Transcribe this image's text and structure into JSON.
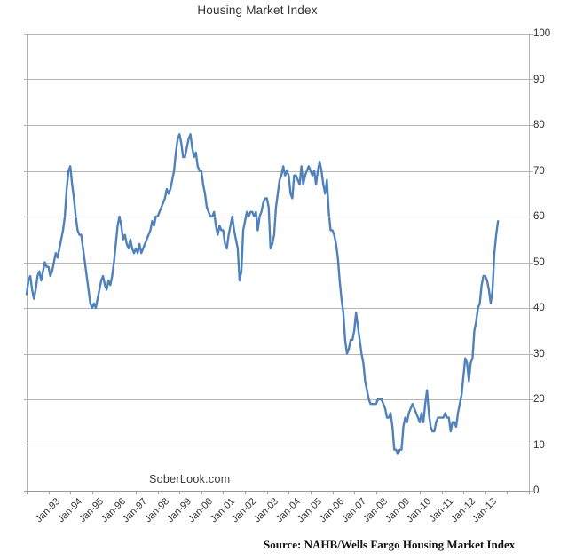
{
  "page": {
    "title": "Housing Market Index",
    "watermark": "SoberLook.com",
    "source_note": "Source: NAHB/Wells Fargo Housing Market Index"
  },
  "colors": {
    "line": "#4f81bd",
    "grid": "#b5b5b5",
    "axis": "#9a9a9a",
    "tick_text": "#303030"
  },
  "chart_data": {
    "type": "line",
    "title": "Housing Market Index",
    "grid": true,
    "legend": "none",
    "y_axis": {
      "side": "right",
      "range": [
        0,
        100
      ],
      "ticks": [
        0,
        10,
        20,
        30,
        40,
        50,
        60,
        70,
        80,
        90,
        100
      ]
    },
    "x_axis": {
      "frequency": "monthly",
      "start_month": "Jan-1992",
      "end_month": "Aug-2013",
      "tick_interval_months": 12,
      "tick_labels": [
        "Jan-93",
        "Jan-94",
        "Jan-95",
        "Jan-96",
        "Jan-97",
        "Jan-98",
        "Jan-99",
        "Jan-00",
        "Jan-01",
        "Jan-02",
        "Jan-03",
        "Jan-04",
        "Jan-05",
        "Jan-06",
        "Jan-07",
        "Jan-08",
        "Jan-09",
        "Jan-10",
        "Jan-11",
        "Jan-12",
        "Jan-13"
      ]
    },
    "series": [
      {
        "name": "NAHB/Wells Fargo Housing Market Index",
        "color": "#4f81bd",
        "values": [
          43,
          46,
          47,
          44,
          42,
          44,
          47,
          48,
          46,
          48,
          50,
          49,
          49,
          47,
          48,
          50,
          52,
          51,
          53,
          55,
          57,
          60,
          66,
          70,
          71,
          67,
          64,
          60,
          57,
          56,
          56,
          53,
          50,
          47,
          44,
          41,
          40,
          41,
          40,
          42,
          44,
          46,
          47,
          45,
          44,
          46,
          45,
          47,
          50,
          54,
          58,
          60,
          58,
          55,
          56,
          54,
          53,
          55,
          53,
          52,
          53,
          52,
          54,
          52,
          53,
          54,
          55,
          56,
          57,
          59,
          58,
          60,
          60,
          61,
          62,
          63,
          64,
          66,
          65,
          66,
          68,
          70,
          74,
          77,
          78,
          76,
          73,
          73,
          75,
          77,
          78,
          75,
          73,
          74,
          71,
          70,
          70,
          67,
          65,
          62,
          61,
          60,
          60,
          61,
          58,
          56,
          58,
          57,
          57,
          54,
          53,
          56,
          58,
          60,
          57,
          55,
          53,
          46,
          48,
          57,
          59,
          61,
          60,
          61,
          61,
          60,
          61,
          57,
          60,
          61,
          63,
          64,
          64,
          62,
          53,
          54,
          56,
          62,
          65,
          68,
          69,
          71,
          69,
          70,
          69,
          65,
          64,
          69,
          69,
          68,
          67,
          71,
          67,
          69,
          70,
          71,
          70,
          69,
          70,
          67,
          70,
          72,
          70,
          67,
          65,
          68,
          61,
          57,
          57,
          56,
          54,
          51,
          46,
          42,
          39,
          33,
          30,
          31,
          33,
          33,
          35,
          39,
          36,
          33,
          30,
          28,
          24,
          22,
          20,
          19,
          19,
          19,
          19,
          20,
          20,
          20,
          19,
          18,
          16,
          16,
          17,
          14,
          9,
          9,
          8,
          9,
          9,
          14,
          16,
          15,
          17,
          18,
          19,
          18,
          17,
          16,
          15,
          17,
          15,
          19,
          22,
          17,
          14,
          13,
          13,
          15,
          16,
          16,
          16,
          16,
          17,
          16,
          16,
          13,
          15,
          15,
          14,
          17,
          19,
          21,
          25,
          29,
          28,
          24,
          28,
          29,
          35,
          37,
          40,
          41,
          45,
          47,
          47,
          46,
          44,
          41,
          44,
          52,
          56,
          59
        ]
      }
    ]
  }
}
